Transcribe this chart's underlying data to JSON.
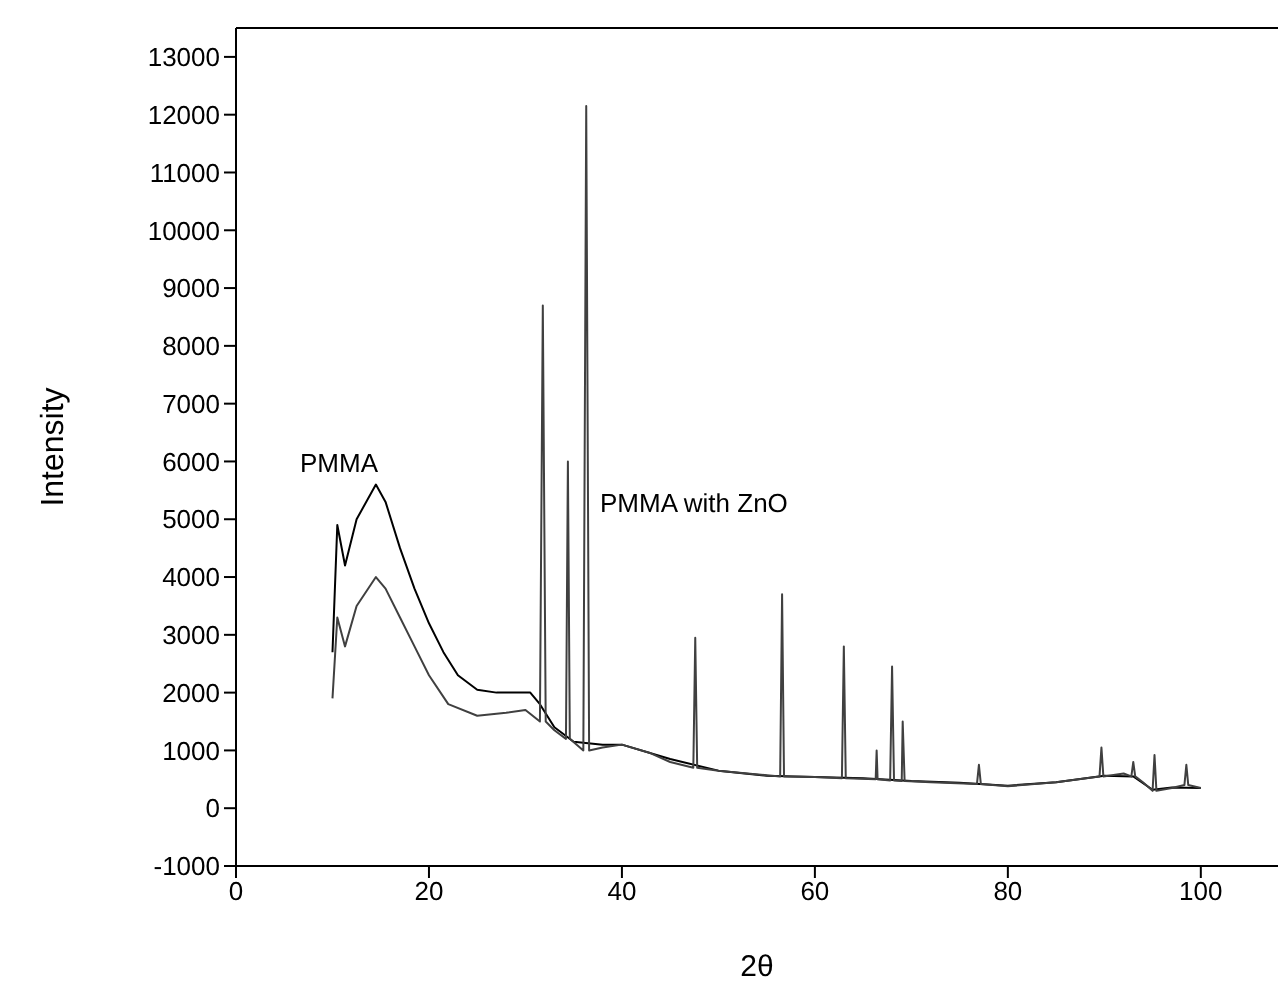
{
  "chart_data": {
    "type": "line",
    "xlabel": "2θ",
    "ylabel": "Intensity",
    "xlim": [
      0,
      108
    ],
    "xticks": [
      0,
      20,
      40,
      60,
      80,
      100
    ],
    "ylim": [
      -1000,
      13500
    ],
    "yticks": [
      -1000,
      0,
      1000,
      2000,
      3000,
      4000,
      5000,
      6000,
      7000,
      8000,
      9000,
      10000,
      11000,
      12000,
      13000
    ],
    "grid": false,
    "legend": false,
    "marker": "none",
    "line_style": "solid",
    "series": [
      {
        "name": "PMMA",
        "color": "#000000",
        "x": [
          10,
          10.5,
          11.3,
          12.5,
          14.5,
          15.5,
          17,
          18.5,
          20,
          21.5,
          23,
          25,
          27,
          29,
          30.5,
          31.5,
          33,
          35,
          38,
          40,
          45,
          50,
          55,
          60,
          65,
          70,
          75,
          80,
          85,
          90,
          93,
          95,
          97,
          100
        ],
        "values": [
          2700,
          4900,
          4200,
          5000,
          5600,
          5300,
          4500,
          3800,
          3200,
          2700,
          2300,
          2050,
          2000,
          2000,
          2000,
          1800,
          1400,
          1150,
          1100,
          1100,
          850,
          650,
          560,
          540,
          520,
          470,
          440,
          390,
          450,
          560,
          550,
          320,
          360,
          350
        ]
      },
      {
        "name": "PMMA with ZnO",
        "color": "#404040",
        "x": [
          10,
          10.5,
          11.3,
          12.5,
          14.5,
          15.5,
          17,
          18.5,
          20,
          22,
          25,
          28,
          30,
          31.5,
          31.8,
          32.1,
          33,
          34.2,
          34.4,
          34.6,
          36,
          36.3,
          36.6,
          38,
          40,
          43,
          45,
          47.4,
          47.6,
          47.8,
          50,
          53,
          56.4,
          56.6,
          56.8,
          60,
          62.8,
          63,
          63.2,
          66.3,
          66.4,
          66.5,
          67.8,
          68,
          68.2,
          69,
          69.1,
          69.3,
          72,
          76.8,
          77,
          77.2,
          80,
          85,
          89.5,
          89.7,
          89.9,
          92,
          92.8,
          93,
          93.2,
          94,
          95,
          95.2,
          95.4,
          97,
          98.3,
          98.5,
          98.7,
          100
        ],
        "values": [
          1900,
          3300,
          2800,
          3500,
          4000,
          3800,
          3300,
          2800,
          2300,
          1800,
          1600,
          1650,
          1700,
          1500,
          8700,
          1500,
          1350,
          1200,
          6000,
          1200,
          1000,
          12150,
          1000,
          1050,
          1100,
          950,
          800,
          700,
          2950,
          700,
          650,
          600,
          550,
          3700,
          550,
          540,
          520,
          2800,
          520,
          500,
          1000,
          500,
          480,
          2450,
          480,
          470,
          1500,
          470,
          450,
          420,
          750,
          420,
          380,
          450,
          550,
          1050,
          550,
          600,
          550,
          800,
          550,
          450,
          300,
          920,
          300,
          350,
          400,
          750,
          400,
          350
        ]
      }
    ]
  }
}
